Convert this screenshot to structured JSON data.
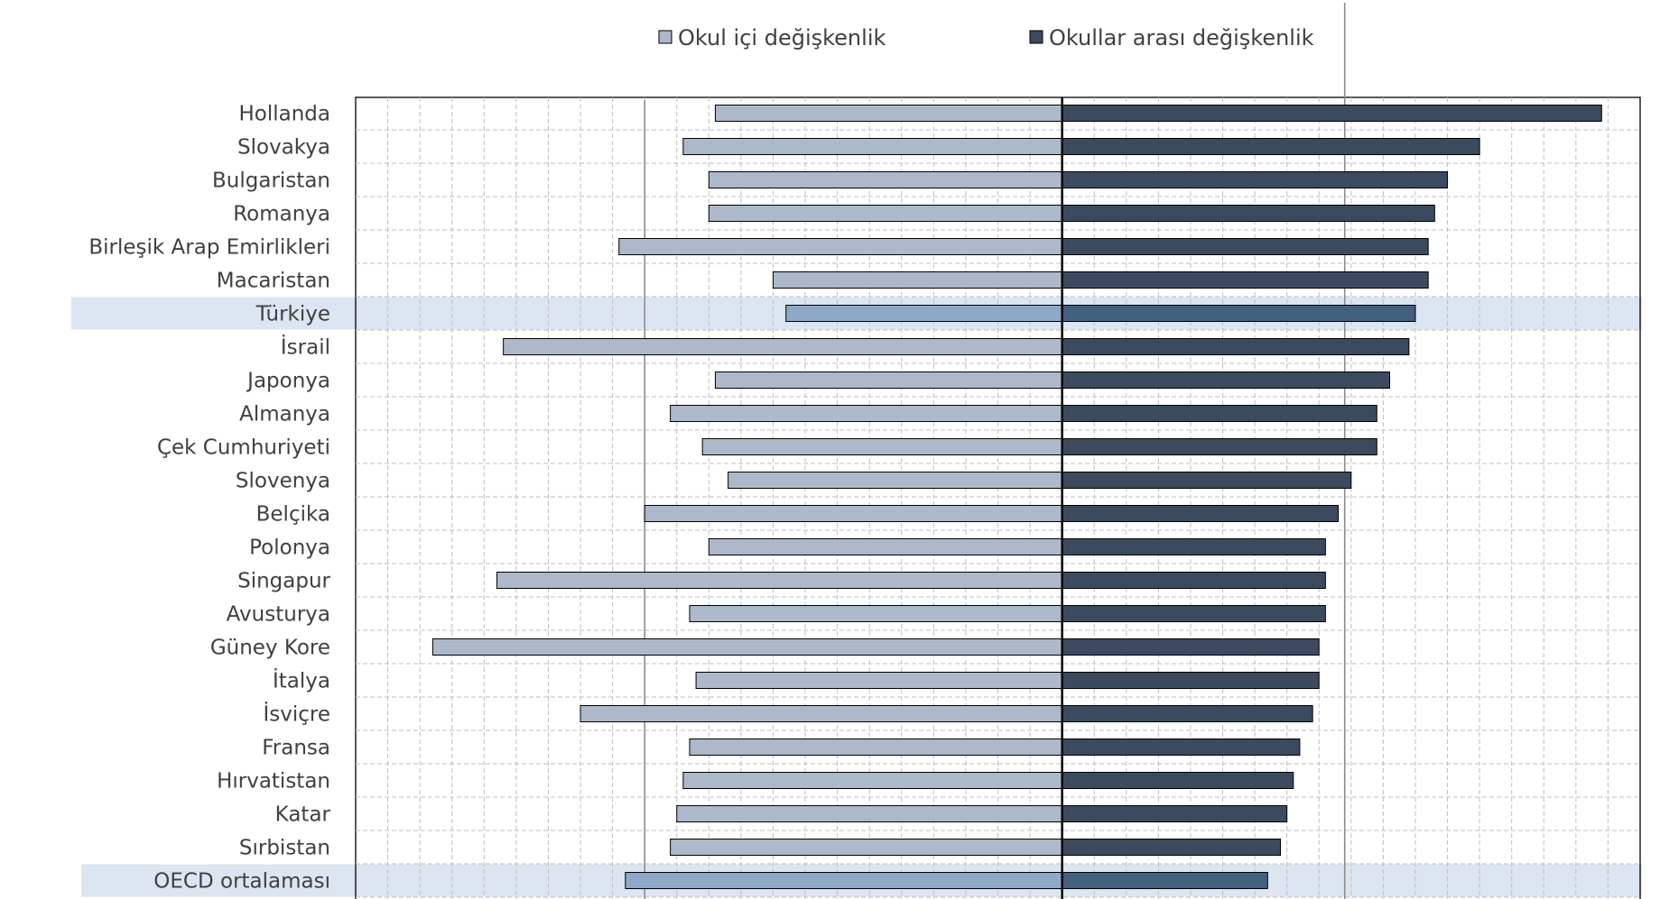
{
  "chart_data": {
    "type": "bar",
    "orientation": "horizontal",
    "stacked": "diverging",
    "title": "",
    "xlabel": "",
    "ylabel": "",
    "grid": true,
    "legend_position": "top",
    "categories": [
      "Hollanda",
      "Slovakya",
      "Bulgaristan",
      "Romanya",
      "Birleşik Arap Emirlikleri",
      "Macaristan",
      "Türkiye",
      "İsrail",
      "Japonya",
      "Almanya",
      "Çek Cumhuriyeti",
      "Slovenya",
      "Belçika",
      "Polonya",
      "Singapur",
      "Avusturya",
      "Güney Kore",
      "İtalya",
      "İsviçre",
      "Fransa",
      "Hırvatistan",
      "Katar",
      "Sırbistan",
      "OECD ortalaması"
    ],
    "highlighted_categories": [
      "Türkiye",
      "OECD ortalaması"
    ],
    "series": [
      {
        "name": "Okul içi değişkenlik",
        "color": "#adb9ca",
        "highlight_color": "#8ea9c8",
        "values": [
          -54,
          -59,
          -55,
          -55,
          -69,
          -45,
          -43,
          -87,
          -54,
          -61,
          -56,
          -52,
          -65,
          -55,
          -88,
          -58,
          -98,
          -57,
          -75,
          -58,
          -59,
          -60,
          -61,
          -68
        ]
      },
      {
        "name": "Okullar arası değişkenlik",
        "color": "#3b4a5f",
        "highlight_color": "#44607f",
        "values": [
          84,
          65,
          60,
          58,
          57,
          57,
          55,
          54,
          51,
          49,
          49,
          45,
          43,
          41,
          41,
          41,
          40,
          40,
          39,
          37,
          36,
          35,
          34,
          32
        ]
      }
    ],
    "xlim": [
      -110,
      90
    ],
    "reference_lines": [
      -65,
      44
    ]
  }
}
